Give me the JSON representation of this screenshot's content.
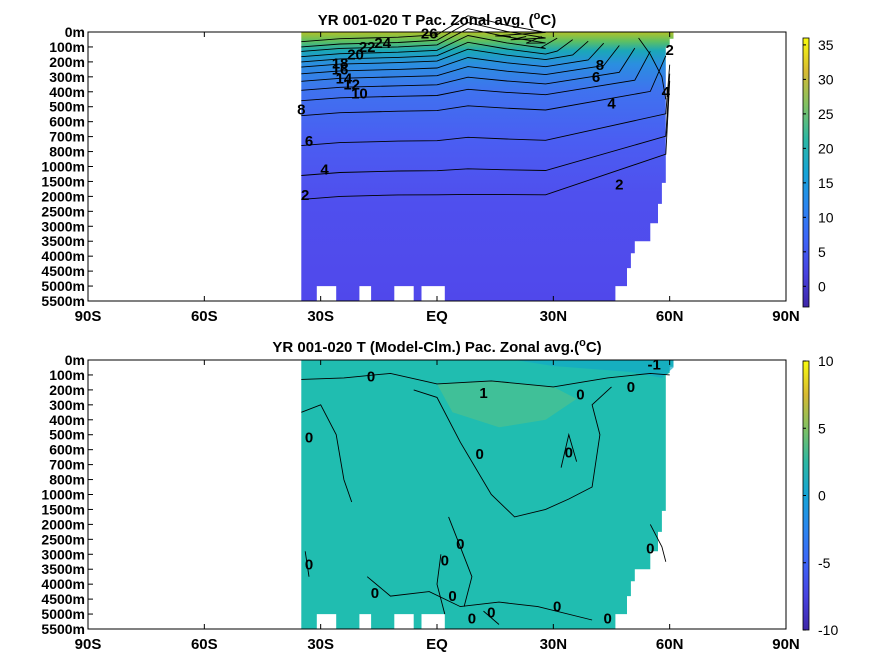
{
  "chart_data": [
    {
      "type": "heatmap",
      "title": "YR 001-020 T Pac. Zonal avg. (",
      "title_sup": "o",
      "title_end": "C)",
      "x_ticks": [
        "90S",
        "60S",
        "30S",
        "EQ",
        "30N",
        "60N",
        "90N"
      ],
      "x_tick_values": [
        -90,
        -60,
        -30,
        0,
        30,
        60,
        90
      ],
      "xlim": [
        -90,
        90
      ],
      "y_ticks": [
        "0m",
        "100m",
        "200m",
        "300m",
        "400m",
        "500m",
        "600m",
        "700m",
        "800m",
        "1000m",
        "1500m",
        "2000m",
        "2500m",
        "3000m",
        "3500m",
        "4000m",
        "4500m",
        "5000m",
        "5500m"
      ],
      "colorbar": {
        "ticks": [
          "0",
          "5",
          "10",
          "15",
          "20",
          "25",
          "30",
          "35"
        ],
        "tick_values": [
          0,
          5,
          10,
          15,
          20,
          25,
          30,
          35
        ],
        "range": [
          -3,
          36
        ],
        "colormap": "parula"
      },
      "contour_labels": [
        {
          "text": "26",
          "lat": -2,
          "level": 0.1
        },
        {
          "text": "24",
          "lat": -14,
          "level": 0.75
        },
        {
          "text": "22",
          "lat": -18,
          "level": 1.0
        },
        {
          "text": "20",
          "lat": -21,
          "level": 1.5
        },
        {
          "text": "18",
          "lat": -25,
          "level": 2.1
        },
        {
          "text": "16",
          "lat": -25,
          "level": 2.5
        },
        {
          "text": "14",
          "lat": -24,
          "level": 3.1
        },
        {
          "text": "12",
          "lat": -22,
          "level": 3.5
        },
        {
          "text": "10",
          "lat": -20,
          "level": 4.1
        },
        {
          "text": "8",
          "lat": -35,
          "level": 5.2
        },
        {
          "text": "6",
          "lat": -33,
          "level": 7.3
        },
        {
          "text": "4",
          "lat": -29,
          "level": 9.2
        },
        {
          "text": "2",
          "lat": -34,
          "level": 10.9
        },
        {
          "text": "2",
          "lat": 47,
          "level": 10.2
        },
        {
          "text": "4",
          "lat": 45,
          "level": 4.8
        },
        {
          "text": "6",
          "lat": 41,
          "level": 3.0
        },
        {
          "text": "8",
          "lat": 42,
          "level": 2.2
        },
        {
          "text": "4",
          "lat": 59,
          "level": 4.0
        },
        {
          "text": "2",
          "lat": 60,
          "level": 1.2
        }
      ]
    },
    {
      "type": "heatmap",
      "title": "YR 001-020 T (Model-Clm.) Pac. Zonal avg.(",
      "title_sup": "o",
      "title_end": "C)",
      "x_ticks": [
        "90S",
        "60S",
        "30S",
        "EQ",
        "30N",
        "60N",
        "90N"
      ],
      "x_tick_values": [
        -90,
        -60,
        -30,
        0,
        30,
        60,
        90
      ],
      "xlim": [
        -90,
        90
      ],
      "y_ticks": [
        "0m",
        "100m",
        "200m",
        "300m",
        "400m",
        "500m",
        "600m",
        "700m",
        "800m",
        "1000m",
        "1500m",
        "2000m",
        "2500m",
        "3000m",
        "3500m",
        "4000m",
        "4500m",
        "5000m",
        "5500m"
      ],
      "colorbar": {
        "ticks": [
          "10",
          "5",
          "0",
          "-5",
          "-10"
        ],
        "tick_values": [
          10,
          5,
          0,
          -5,
          -10
        ],
        "range": [
          -10,
          10
        ],
        "colormap": "parula"
      },
      "contour_labels": [
        {
          "text": "0",
          "lat": -17,
          "level": 1.1
        },
        {
          "text": "1",
          "lat": 12,
          "level": 2.2
        },
        {
          "text": "-1",
          "lat": 56,
          "level": 0.3
        },
        {
          "text": "0",
          "lat": 37,
          "level": 2.3
        },
        {
          "text": "0",
          "lat": 50,
          "level": 1.8
        },
        {
          "text": "0",
          "lat": -33,
          "level": 5.2
        },
        {
          "text": "0",
          "lat": 11,
          "level": 6.3
        },
        {
          "text": "0",
          "lat": 34,
          "level": 6.2
        },
        {
          "text": "0",
          "lat": 6,
          "level": 12.3
        },
        {
          "text": "0",
          "lat": 2,
          "level": 13.4
        },
        {
          "text": "0",
          "lat": 55,
          "level": 12.6
        },
        {
          "text": "0",
          "lat": -33,
          "level": 13.7
        },
        {
          "text": "0",
          "lat": -16,
          "level": 15.6
        },
        {
          "text": "0",
          "lat": 4,
          "level": 15.8
        },
        {
          "text": "0",
          "lat": 14,
          "level": 16.9
        },
        {
          "text": "0",
          "lat": 9,
          "level": 17.3
        },
        {
          "text": "0",
          "lat": 31,
          "level": 16.5
        },
        {
          "text": "0",
          "lat": 44,
          "level": 17.3
        }
      ]
    }
  ]
}
